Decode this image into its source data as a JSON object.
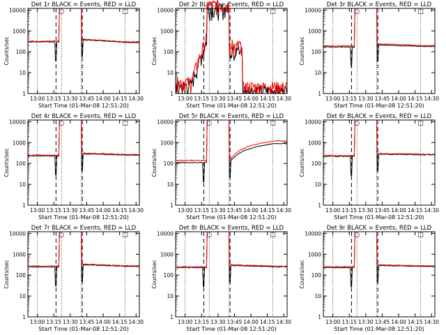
{
  "chart_data": {
    "type": "line",
    "scale": "log",
    "ylim": [
      1,
      12000
    ],
    "xlim_minutes": [
      "12:51:20",
      "14:33:00"
    ],
    "x_ticks": [
      "13:00",
      "13:15",
      "13:30",
      "13:45",
      "14:00",
      "14:15",
      "14:30"
    ],
    "y_ticks": [
      "1",
      "10",
      "100",
      "1000",
      "10000"
    ],
    "xlabel": "Start Time (01-Mar-08 12:51:20)",
    "ylabel": "Counts/sec",
    "series_names": [
      "Events",
      "LLD"
    ],
    "colors": {
      "Events": "#000000",
      "LLD": "#ff0000"
    },
    "vertical_markers": {
      "dotted": [
        "13:00",
        "13:22",
        "13:40",
        "14:20"
      ],
      "dashed": [
        "13:17",
        "13:41"
      ]
    },
    "annotations": [
      {
        "label": "○",
        "at": "13:22"
      },
      {
        "label": "□",
        "at": "14:20"
      }
    ],
    "panels": [
      {
        "title": "Det 1r  BLACK = Events, RED = LLD",
        "base_events": 300,
        "base_lld": 320,
        "peak": 12000,
        "end_events": 280,
        "end_lld": 300
      },
      {
        "title": "Det 2r  BLACK = Events, RED = LLD",
        "base_events": 2,
        "base_lld": 3,
        "peak": 12000,
        "end_events": 1,
        "end_lld": 2
      },
      {
        "title": "Det 3r  BLACK = Events, RED = LLD",
        "base_events": 170,
        "base_lld": 190,
        "peak": 12000,
        "end_events": 180,
        "end_lld": 200
      },
      {
        "title": "Det 4r  BLACK = Events, RED = LLD",
        "base_events": 230,
        "base_lld": 250,
        "peak": 12000,
        "end_events": 250,
        "end_lld": 270
      },
      {
        "title": "Det 5r  BLACK = Events, RED = LLD",
        "base_events": 110,
        "base_lld": 140,
        "peak": 12000,
        "end_events": 900,
        "end_lld": 1200
      },
      {
        "title": "Det 6r  BLACK = Events, RED = LLD",
        "base_events": 220,
        "base_lld": 240,
        "peak": 12000,
        "end_events": 260,
        "end_lld": 280
      },
      {
        "title": "Det 7r  BLACK = Events, RED = LLD",
        "base_events": 250,
        "base_lld": 270,
        "peak": 12000,
        "end_events": 260,
        "end_lld": 280
      },
      {
        "title": "Det 8r  BLACK = Events, RED = LLD",
        "base_events": 230,
        "base_lld": 250,
        "peak": 12000,
        "end_events": 250,
        "end_lld": 270
      },
      {
        "title": "Det 9r  BLACK = Events, RED = LLD",
        "base_events": 230,
        "base_lld": 250,
        "peak": 12000,
        "end_events": 260,
        "end_lld": 280
      }
    ]
  }
}
